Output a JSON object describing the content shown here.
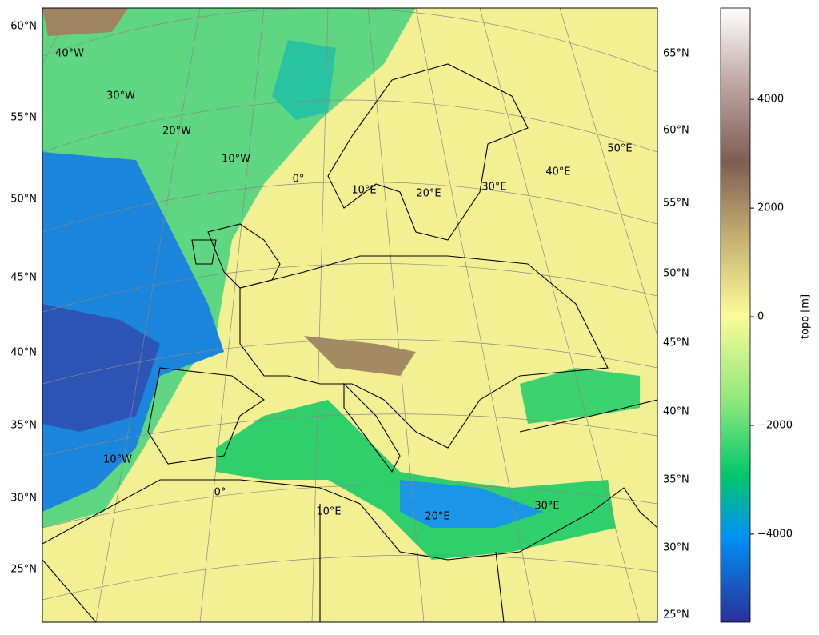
{
  "map": {
    "left_lat_labels": [
      "60°N",
      "55°N",
      "50°N",
      "45°N",
      "40°N",
      "35°N",
      "30°N",
      "25°N"
    ],
    "right_lat_labels": [
      "65°N",
      "60°N",
      "55°N",
      "50°N",
      "45°N",
      "40°N",
      "35°N",
      "30°N",
      "25°N"
    ],
    "upper_lon_labels": [
      "40°W",
      "30°W",
      "20°W",
      "10°W",
      "0°",
      "10°E",
      "20°E",
      "30°E",
      "40°E",
      "50°E"
    ],
    "lower_lon_labels": [
      "10°W",
      "0°",
      "10°E",
      "20°E",
      "30°E"
    ],
    "colorbar": {
      "label": "topo [m]",
      "lim": [
        -5620,
        5680
      ],
      "ticks": [
        {
          "value": -4000,
          "label": "−4000"
        },
        {
          "value": -2000,
          "label": "−2000"
        },
        0,
        2000,
        4000
      ]
    }
  }
}
